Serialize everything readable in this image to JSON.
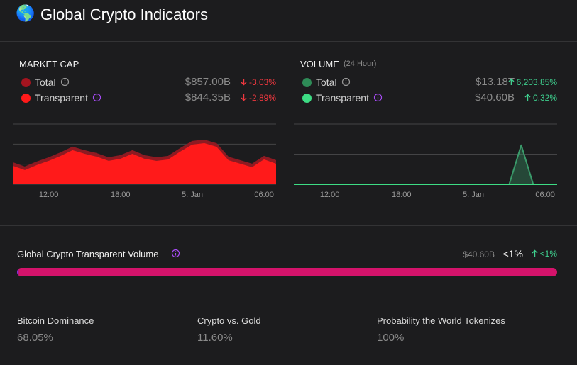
{
  "header": {
    "icon": "🌎",
    "title": "Global Crypto Indicators"
  },
  "market_cap": {
    "title": "MARKET CAP",
    "rows": [
      {
        "name": "Total",
        "color": "#a3141f",
        "value": "$857.00B",
        "change": "-3.03%",
        "direction": "down",
        "info_color": "#9a9a9a"
      },
      {
        "name": "Transparent",
        "color": "#ff1a1a",
        "value": "$844.35B",
        "change": "-2.89%",
        "direction": "down",
        "info_color": "#a64bf4"
      }
    ],
    "chart": {
      "type": "area",
      "x": [
        9,
        10,
        11,
        12,
        13,
        14,
        15,
        16,
        17,
        18,
        19,
        20,
        21,
        22,
        23,
        24,
        25,
        26,
        27,
        28,
        29,
        30,
        31
      ],
      "xlim": [
        9,
        31
      ],
      "xticks": [
        {
          "value": 12,
          "label": "12:00"
        },
        {
          "value": 18,
          "label": "18:00"
        },
        {
          "value": 24,
          "label": "5. Jan"
        },
        {
          "value": 30,
          "label": "06:00"
        }
      ],
      "ylim": [
        800,
        875
      ],
      "yticks": [
        800,
        825,
        850,
        875
      ],
      "grid": true,
      "series": [
        {
          "color": "#8e1a22",
          "values": [
            826.5,
            821.3,
            827.4,
            832.7,
            838.9,
            846.0,
            841.6,
            838.0,
            832.7,
            835.4,
            841.6,
            835.4,
            832.7,
            834.5,
            844.2,
            853.0,
            854.8,
            850.4,
            833.6,
            829.2,
            824.8,
            834.5,
            829.2
          ]
        },
        {
          "color": "#ff1a1a",
          "values": [
            822.1,
            816.8,
            822.9,
            828.2,
            834.4,
            841.5,
            837.1,
            833.5,
            828.2,
            830.9,
            837.1,
            830.9,
            828.2,
            830.0,
            839.7,
            848.5,
            850.3,
            845.9,
            829.1,
            824.7,
            820.3,
            830.0,
            824.7
          ]
        }
      ]
    }
  },
  "volume": {
    "title": "VOLUME",
    "subtitle": "(24 Hour)",
    "rows": [
      {
        "name": "Total",
        "color": "#2e8b57",
        "value": "$13.18T",
        "change": "6,203.85%",
        "direction": "up",
        "info_color": "#9a9a9a"
      },
      {
        "name": "Transparent",
        "color": "#3ddc84",
        "value": "$40.60B",
        "change": "0.32%",
        "direction": "up",
        "info_color": "#a64bf4"
      }
    ],
    "chart": {
      "type": "area",
      "x": [
        9,
        10,
        11,
        12,
        13,
        14,
        15,
        16,
        17,
        18,
        19,
        20,
        21,
        22,
        23,
        24,
        25,
        26,
        27,
        28,
        29,
        30,
        31
      ],
      "xlim": [
        9,
        31
      ],
      "xticks": [
        {
          "value": 12,
          "label": "12:00"
        },
        {
          "value": 18,
          "label": "18:00"
        },
        {
          "value": 24,
          "label": "5. Jan"
        },
        {
          "value": 30,
          "label": "06:00"
        }
      ],
      "ylim": [
        0,
        4000
      ],
      "yticks": [
        0,
        2000,
        4000
      ],
      "grid": true,
      "series": [
        {
          "color": "#3a9a6a",
          "values": [
            0,
            0,
            0,
            0,
            0,
            0,
            0,
            0,
            0,
            0,
            0,
            0,
            0,
            0,
            0,
            0,
            0,
            0,
            0,
            2600,
            0,
            0,
            0
          ]
        },
        {
          "color": "#3ddc84",
          "values": [
            1.7,
            1.7,
            1.7,
            1.7,
            1.7,
            1.7,
            1.7,
            1.7,
            1.7,
            1.7,
            1.7,
            1.7,
            1.7,
            1.7,
            1.7,
            1.7,
            1.7,
            1.7,
            1.7,
            1.7,
            1.7,
            1.7,
            1.7
          ]
        }
      ]
    }
  },
  "transparent_volume": {
    "label": "Global Crypto Transparent Volume",
    "value": "$40.60B",
    "share": "<1%",
    "change": "<1%",
    "direction": "up",
    "bar": {
      "values": [
        40.6,
        13180
      ],
      "colors": [
        "#8a2be2",
        "#d4136b"
      ]
    }
  },
  "stats": [
    {
      "label": "Bitcoin Dominance",
      "value": "68.05%"
    },
    {
      "label": "Crypto vs. Gold",
      "value": "11.60%"
    },
    {
      "label": "Probability the World Tokenizes",
      "value": "100%"
    }
  ]
}
